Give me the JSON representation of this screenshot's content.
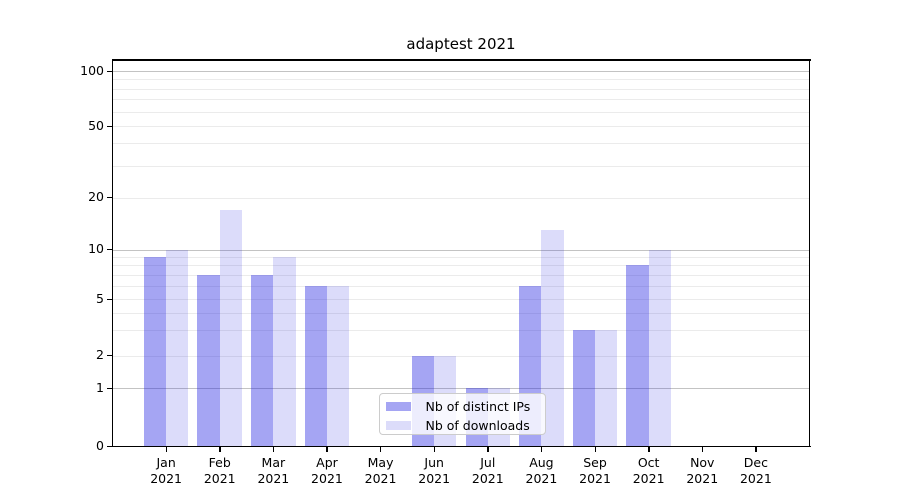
{
  "title": "adaptest 2021",
  "chart_data": {
    "type": "bar",
    "title": "adaptest 2021",
    "yscale": "symlog",
    "grid": "on",
    "categories": [
      "Jan",
      "Feb",
      "Mar",
      "Apr",
      "May",
      "Jun",
      "Jul",
      "Aug",
      "Sep",
      "Oct",
      "Nov",
      "Dec"
    ],
    "category_year": "2021",
    "series": [
      {
        "name": "Nb of distinct IPs",
        "color": "rgba(30,30,225,0.40)",
        "solid_color": "#a3a3f1",
        "values": [
          9,
          7,
          7,
          6,
          0,
          2,
          1,
          6,
          3,
          8,
          0,
          0
        ]
      },
      {
        "name": "Nb of downloads",
        "color": "rgba(30,30,225,0.155)",
        "solid_color": "#dbdbfa",
        "values": [
          10,
          17,
          9,
          6,
          0,
          2,
          1,
          13,
          3,
          10,
          0,
          0
        ]
      }
    ],
    "y_ticks": [
      100,
      50,
      20,
      10,
      5,
      2,
      1,
      0
    ],
    "gridlines_major": [
      1,
      10,
      100
    ],
    "gridlines_minor": [
      2,
      3,
      4,
      5,
      6,
      7,
      8,
      9,
      20,
      30,
      40,
      50,
      60,
      70,
      80,
      90
    ],
    "ylim": [
      0,
      130
    ],
    "legend_position": "lower center"
  },
  "legend": {
    "items": [
      {
        "label": "Nb of distinct IPs",
        "swatch_color": "rgba(30,30,225,0.40)"
      },
      {
        "label": "Nb of downloads",
        "swatch_color": "rgba(30,30,225,0.155)"
      }
    ]
  }
}
